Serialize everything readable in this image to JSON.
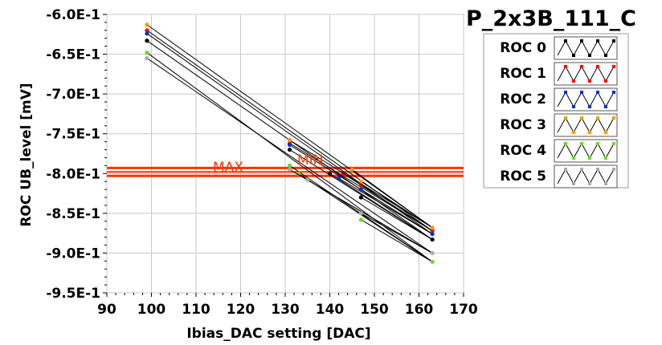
{
  "chart_data": {
    "type": "line",
    "title": "P_2x3B_111_C",
    "xlabel": "Ibias_DAC setting [DAC]",
    "ylabel": "ROC UB_level [mV]",
    "xlim": [
      90,
      170
    ],
    "ylim": [
      -0.95,
      -0.6
    ],
    "x_ticks": [
      90,
      100,
      110,
      120,
      130,
      140,
      150,
      160,
      170
    ],
    "x_tick_labels": [
      "90",
      "100",
      "110",
      "120",
      "130",
      "140",
      "150",
      "160",
      "170"
    ],
    "y_ticks": [
      -0.6,
      -0.65,
      -0.7,
      -0.75,
      -0.8,
      -0.85,
      -0.9,
      -0.95
    ],
    "y_tick_labels": [
      "-6.0E-1",
      "-6.5E-1",
      "-7.0E-1",
      "-7.5E-1",
      "-8.0E-1",
      "-8.5E-1",
      "-9.0E-1",
      "-9.5E-1"
    ],
    "grid": true,
    "legend_position": "right",
    "series": [
      {
        "name": "ROC 0",
        "color": "#000000",
        "points": [
          [
            99,
            -0.633
          ],
          [
            131,
            -0.77
          ],
          [
            140,
            -0.8
          ],
          [
            147,
            -0.83
          ],
          [
            163,
            -0.883
          ]
        ]
      },
      {
        "name": "ROC 1",
        "color": "#ff0000",
        "points": [
          [
            99,
            -0.62
          ],
          [
            131,
            -0.762
          ],
          [
            143,
            -0.8
          ],
          [
            147,
            -0.815
          ],
          [
            163,
            -0.872
          ]
        ]
      },
      {
        "name": "ROC 2",
        "color": "#0033cc",
        "points": [
          [
            99,
            -0.624
          ],
          [
            131,
            -0.764
          ],
          [
            142,
            -0.806
          ],
          [
            147,
            -0.82
          ],
          [
            163,
            -0.876
          ]
        ]
      },
      {
        "name": "ROC 3",
        "color": "#ff9900",
        "points": [
          [
            99,
            -0.613
          ],
          [
            131,
            -0.758
          ],
          [
            145,
            -0.795
          ],
          [
            147,
            -0.81
          ],
          [
            163,
            -0.868
          ]
        ]
      },
      {
        "name": "ROC 4",
        "color": "#66dd22",
        "points": [
          [
            99,
            -0.648
          ],
          [
            131,
            -0.79
          ],
          [
            133,
            -0.8
          ],
          [
            147,
            -0.858
          ],
          [
            163,
            -0.911
          ]
        ]
      },
      {
        "name": "ROC 5",
        "color": "#aaaaaa",
        "points": [
          [
            99,
            -0.655
          ],
          [
            131,
            -0.795
          ],
          [
            135,
            -0.808
          ],
          [
            147,
            -0.85
          ],
          [
            163,
            -0.9
          ]
        ]
      }
    ],
    "reference_lines": [
      {
        "label": "MAX",
        "y": -0.793,
        "color": "#ff3300"
      },
      {
        "label": "MIN",
        "y": -0.803,
        "color": "#ff3300"
      }
    ],
    "extra_line_y": -0.798,
    "legend_colors": {
      "line_color": "#000000",
      "background": "#ffffff",
      "border": "#999999"
    },
    "label_colors": {
      "max": "#ff3300",
      "min": "#ff3300"
    }
  }
}
